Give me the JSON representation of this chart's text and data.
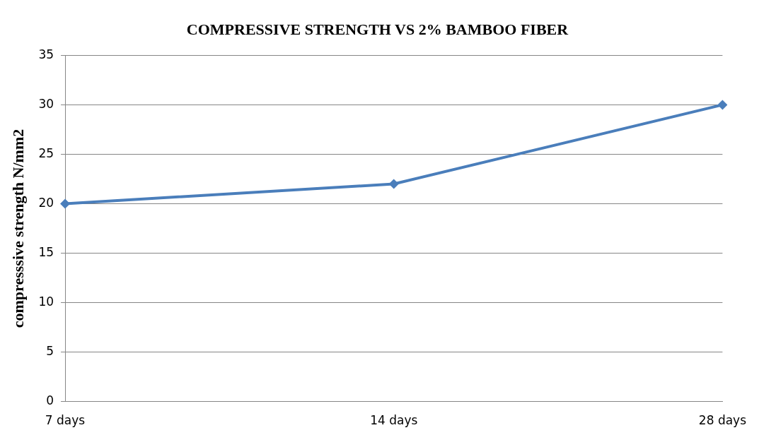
{
  "chart_data": {
    "type": "line",
    "title": "COMPRESSIVE STRENGTH VS 2% BAMBOO FIBER",
    "ylabel": "compresssive strength N/mm2",
    "categories": [
      "7 days",
      "14 days",
      "28 days"
    ],
    "series": [
      {
        "color": "#4a7ebb",
        "values": [
          20,
          22,
          30
        ]
      }
    ],
    "ylim": [
      0,
      35
    ],
    "yticks": [
      0,
      5,
      10,
      15,
      20,
      25,
      30,
      35
    ],
    "grid": "y",
    "legend": false,
    "marker": "diamond",
    "line_style": "solid"
  }
}
